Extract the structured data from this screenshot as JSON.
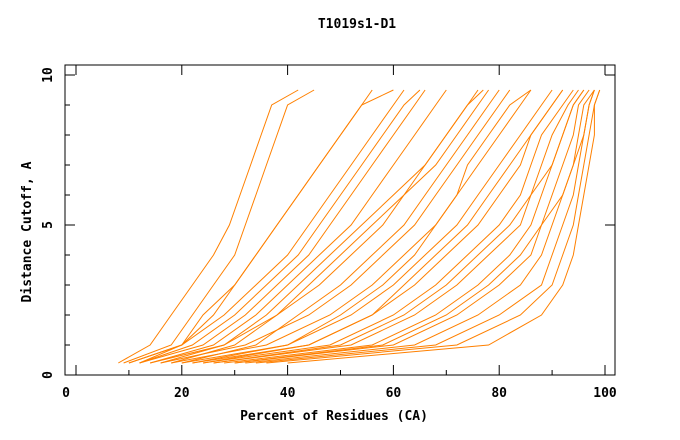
{
  "chart_data": {
    "type": "line",
    "title": "T1019s1-D1",
    "xlabel": "Percent of Residues (CA)",
    "ylabel": "Distance Cutoff, A",
    "xlim": [
      0,
      100
    ],
    "ylim": [
      0,
      10
    ],
    "x_ticks": [
      "0",
      "20",
      "40",
      "60",
      "80",
      "100"
    ],
    "y_ticks": [
      "0",
      "5",
      "10"
    ],
    "grid": false,
    "legend": "none",
    "line_color": "#ff8000",
    "cutoff_levels": [
      0.4,
      1,
      2,
      3,
      4,
      5,
      6,
      7,
      8,
      9,
      9.5
    ],
    "series": [
      {
        "values": [
          8,
          14,
          18,
          22,
          26,
          29,
          31,
          33,
          35,
          37,
          42
        ]
      },
      {
        "values": [
          9,
          18,
          22,
          26,
          30,
          32,
          34,
          36,
          38,
          40,
          45
        ]
      },
      {
        "values": [
          10,
          20,
          26,
          30,
          34,
          38,
          42,
          46,
          50,
          54,
          56
        ]
      },
      {
        "values": [
          12,
          24,
          32,
          38,
          44,
          48,
          52,
          56,
          60,
          64,
          66
        ]
      },
      {
        "values": [
          14,
          28,
          38,
          46,
          52,
          58,
          62,
          66,
          70,
          74,
          76
        ]
      },
      {
        "values": [
          16,
          32,
          44,
          52,
          58,
          64,
          68,
          72,
          76,
          80,
          82
        ]
      },
      {
        "values": [
          18,
          36,
          48,
          56,
          62,
          68,
          72,
          76,
          80,
          84,
          86
        ]
      },
      {
        "values": [
          20,
          40,
          52,
          60,
          66,
          72,
          76,
          80,
          84,
          88,
          90
        ]
      },
      {
        "values": [
          22,
          44,
          56,
          64,
          70,
          76,
          80,
          84,
          86,
          90,
          92
        ]
      },
      {
        "values": [
          24,
          48,
          60,
          68,
          74,
          80,
          84,
          86,
          88,
          92,
          94
        ]
      },
      {
        "values": [
          26,
          52,
          64,
          72,
          78,
          84,
          86,
          88,
          90,
          93,
          95
        ]
      },
      {
        "values": [
          28,
          56,
          68,
          76,
          82,
          86,
          88,
          90,
          92,
          94,
          96
        ]
      },
      {
        "values": [
          30,
          60,
          72,
          80,
          86,
          88,
          90,
          92,
          94,
          95,
          97
        ]
      },
      {
        "values": [
          32,
          64,
          76,
          84,
          88,
          90,
          92,
          94,
          95,
          96,
          98
        ]
      },
      {
        "values": [
          34,
          68,
          80,
          88,
          90,
          92,
          94,
          95,
          96,
          97,
          98
        ]
      },
      {
        "values": [
          36,
          72,
          84,
          90,
          92,
          94,
          95,
          96,
          97,
          98,
          99
        ]
      },
      {
        "values": [
          40,
          78,
          88,
          92,
          94,
          95,
          96,
          97,
          98,
          98,
          99
        ]
      },
      {
        "values": [
          20,
          34,
          42,
          50,
          56,
          62,
          66,
          70,
          74,
          78,
          80
        ]
      },
      {
        "values": [
          18,
          30,
          38,
          44,
          50,
          56,
          62,
          68,
          72,
          76,
          78
        ]
      },
      {
        "values": [
          16,
          28,
          36,
          42,
          48,
          54,
          60,
          66,
          70,
          74,
          77
        ]
      },
      {
        "values": [
          12,
          22,
          30,
          36,
          42,
          46,
          50,
          54,
          58,
          62,
          65
        ]
      },
      {
        "values": [
          10,
          20,
          28,
          34,
          40,
          44,
          48,
          52,
          56,
          60,
          62
        ]
      },
      {
        "values": [
          22,
          40,
          50,
          58,
          64,
          68,
          72,
          74,
          78,
          82,
          86
        ]
      },
      {
        "values": [
          24,
          44,
          56,
          62,
          68,
          74,
          78,
          82,
          86,
          90,
          92
        ]
      },
      {
        "values": [
          14,
          26,
          34,
          40,
          46,
          52,
          56,
          60,
          64,
          68,
          70
        ]
      },
      {
        "values": [
          12,
          20,
          24,
          30,
          34,
          38,
          42,
          46,
          50,
          54,
          60
        ]
      },
      {
        "values": [
          26,
          50,
          62,
          70,
          76,
          82,
          86,
          90,
          92,
          94,
          96
        ]
      },
      {
        "values": [
          30,
          58,
          70,
          78,
          84,
          88,
          92,
          94,
          96,
          97,
          98
        ]
      }
    ]
  }
}
